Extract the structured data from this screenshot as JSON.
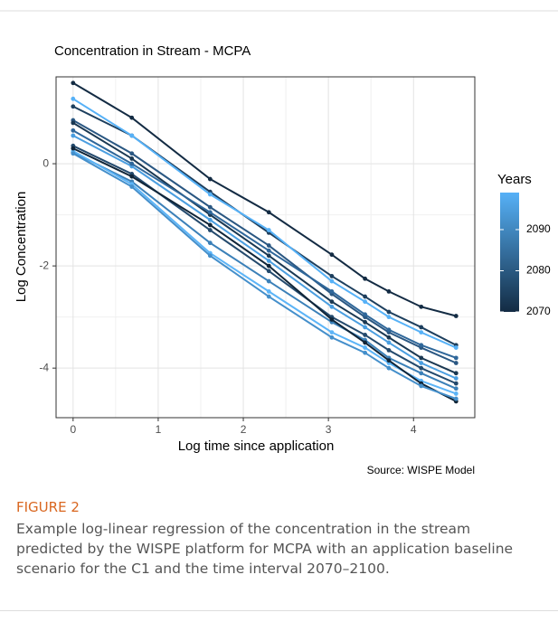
{
  "chart_data": {
    "type": "line",
    "title": "Concentration in Stream - MCPA",
    "x_label": "Log time since application",
    "y_label": "Log Concentration",
    "source": "Source: WISPE Model",
    "x": [
      0,
      0.69,
      1.61,
      2.3,
      3.04,
      3.43,
      3.71,
      4.09,
      4.5
    ],
    "xlim": [
      -0.2,
      4.72
    ],
    "xticks": [
      0,
      1,
      2,
      3,
      4
    ],
    "ylim": [
      -4.97,
      1.7
    ],
    "yticks": [
      -4,
      -2,
      0
    ],
    "grid": true,
    "colorbar": {
      "title": "Years",
      "lim": [
        2070,
        2099
      ],
      "ticks": [
        2070,
        2080,
        2090
      ],
      "colors": [
        "#132b43",
        "#56b1f7"
      ]
    },
    "series": [
      {
        "color": "#132b43",
        "values": [
          1.58,
          0.9,
          -0.3,
          -0.95,
          -1.78,
          -2.25,
          -2.5,
          -2.8,
          -2.98
        ]
      },
      {
        "color": "#1d3f5e",
        "values": [
          1.12,
          0.55,
          -0.55,
          -1.35,
          -2.2,
          -2.6,
          -2.9,
          -3.2,
          -3.55
        ]
      },
      {
        "color": "#56b1f7",
        "values": [
          1.27,
          0.55,
          -0.6,
          -1.3,
          -2.3,
          -2.7,
          -3.0,
          -3.3,
          -3.6
        ]
      },
      {
        "color": "#2a5782",
        "values": [
          0.85,
          0.2,
          -0.85,
          -1.6,
          -2.55,
          -3.0,
          -3.3,
          -3.6,
          -3.9
        ]
      },
      {
        "color": "#1a3852",
        "values": [
          0.8,
          0.1,
          -1.0,
          -1.8,
          -2.7,
          -3.1,
          -3.4,
          -3.8,
          -4.1
        ]
      },
      {
        "color": "#4a9ee0",
        "values": [
          0.55,
          -0.05,
          -1.1,
          -1.9,
          -2.8,
          -3.2,
          -3.5,
          -3.9,
          -4.2
        ]
      },
      {
        "color": "#23496c",
        "values": [
          0.35,
          -0.2,
          -1.3,
          -2.1,
          -3.0,
          -3.35,
          -3.65,
          -4.0,
          -4.3
        ]
      },
      {
        "color": "#3b80b8",
        "values": [
          0.22,
          -0.35,
          -1.55,
          -2.3,
          -3.1,
          -3.45,
          -3.8,
          -4.1,
          -4.4
        ]
      },
      {
        "color": "#5cb4f7",
        "values": [
          0.25,
          -0.4,
          -1.75,
          -2.5,
          -3.3,
          -3.6,
          -3.9,
          -4.25,
          -4.5
        ]
      },
      {
        "color": "#102538",
        "values": [
          0.3,
          -0.25,
          -1.2,
          -2.0,
          -3.05,
          -3.5,
          -3.85,
          -4.3,
          -4.65
        ]
      },
      {
        "color": "#448fcb",
        "values": [
          0.2,
          -0.45,
          -1.8,
          -2.6,
          -3.4,
          -3.7,
          -4.0,
          -4.35,
          -4.6
        ]
      },
      {
        "color": "#2f679a",
        "values": [
          0.65,
          0.0,
          -0.95,
          -1.7,
          -2.5,
          -2.95,
          -3.25,
          -3.55,
          -3.8
        ]
      }
    ]
  },
  "figure": {
    "label": "FIGURE 2",
    "caption": "Example log-linear regression of the concentration in the stream predicted by the WISPE platform for MCPA with an application baseline scenario for the C1 and the time interval 2070–2100."
  }
}
